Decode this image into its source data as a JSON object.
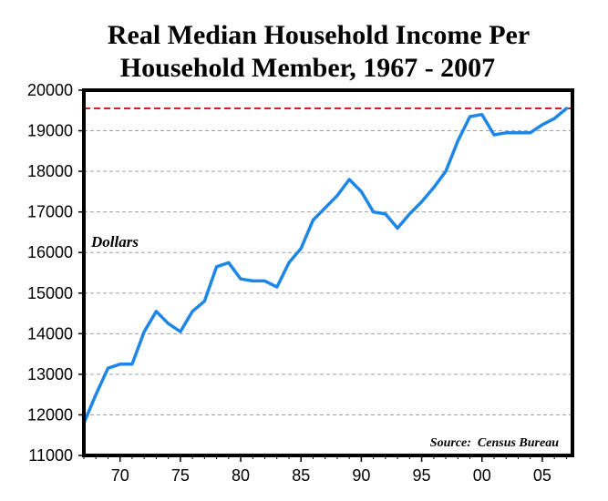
{
  "chart_data": {
    "type": "line",
    "title_line1": "Real Median Household Income Per",
    "title_line2": "Household Member, 1967 - 2007",
    "ylabel": "Dollars",
    "source": "Source:  Census Bureau",
    "xlim": [
      1967,
      2007.5
    ],
    "ylim": [
      11000,
      20000
    ],
    "yticks": [
      11000,
      12000,
      13000,
      14000,
      15000,
      16000,
      17000,
      18000,
      19000,
      20000
    ],
    "xticks": [
      {
        "value": 1970,
        "label": "70"
      },
      {
        "value": 1975,
        "label": "75"
      },
      {
        "value": 1980,
        "label": "80"
      },
      {
        "value": 1985,
        "label": "85"
      },
      {
        "value": 1990,
        "label": "90"
      },
      {
        "value": 1995,
        "label": "95"
      },
      {
        "value": 2000,
        "label": "00"
      },
      {
        "value": 2005,
        "label": "05"
      }
    ],
    "grid": true,
    "reference_line": 19550,
    "colors": {
      "line": "#1e86e6",
      "reference": "#d42020",
      "grid": "#a0a0a0"
    },
    "series": [
      {
        "x": [
          1967,
          1968,
          1969,
          1970,
          1971,
          1972,
          1973,
          1974,
          1975,
          1976,
          1977,
          1978,
          1979,
          1980,
          1981,
          1982,
          1983,
          1984,
          1985,
          1986,
          1987,
          1988,
          1989,
          1990,
          1991,
          1992,
          1993,
          1994,
          1995,
          1996,
          1997,
          1998,
          1999,
          2000,
          2001,
          2002,
          2003,
          2004,
          2005,
          2006,
          2007
        ],
        "y": [
          11800,
          12500,
          13150,
          13250,
          13250,
          14050,
          14550,
          14250,
          14050,
          14550,
          14800,
          15650,
          15750,
          15350,
          15300,
          15300,
          15150,
          15750,
          16100,
          16800,
          17100,
          17400,
          17800,
          17500,
          17000,
          16950,
          16600,
          16950,
          17250,
          17600,
          18000,
          18750,
          19350,
          19400,
          18900,
          18950,
          18950,
          18950,
          19150,
          19300,
          19550
        ]
      }
    ]
  }
}
